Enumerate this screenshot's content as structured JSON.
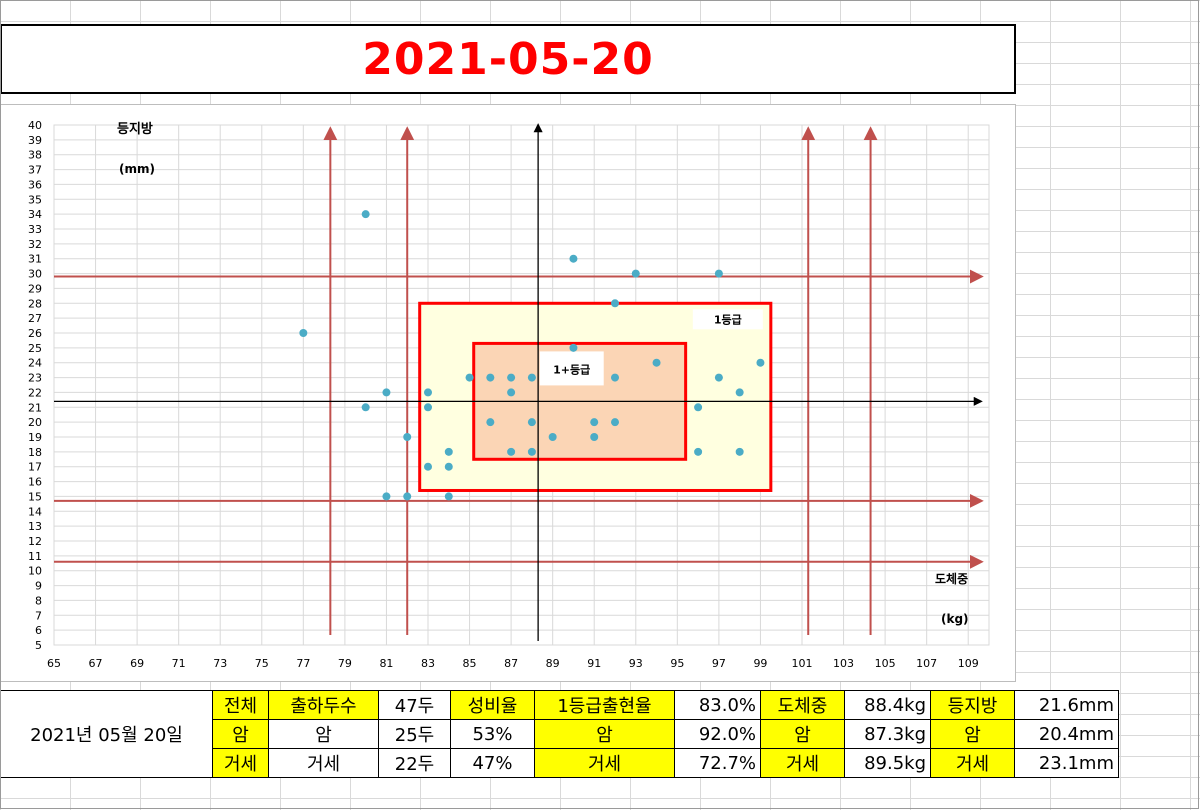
{
  "title": "2021-05-20",
  "chart_data": {
    "type": "scatter",
    "xlabel": "도체중",
    "xlabel_unit": "(kg)",
    "ylabel": "등지방",
    "ylabel_unit": "(mm)",
    "xlim": [
      65,
      110
    ],
    "ylim": [
      5,
      40
    ],
    "x_ticks": [
      65,
      67,
      69,
      71,
      73,
      75,
      77,
      79,
      81,
      83,
      85,
      87,
      89,
      91,
      93,
      95,
      97,
      99,
      101,
      103,
      105,
      107,
      109
    ],
    "y_ticks": [
      5,
      6,
      7,
      8,
      9,
      10,
      11,
      12,
      13,
      14,
      15,
      16,
      17,
      18,
      19,
      20,
      21,
      22,
      23,
      24,
      25,
      26,
      27,
      28,
      29,
      30,
      31,
      32,
      33,
      34,
      35,
      36,
      37,
      38,
      39,
      40
    ],
    "grid": true,
    "point_color": "#4bacc6",
    "points": [
      [
        77,
        26
      ],
      [
        80,
        34
      ],
      [
        80,
        21
      ],
      [
        81,
        22
      ],
      [
        81,
        15
      ],
      [
        82,
        19
      ],
      [
        82,
        15
      ],
      [
        83,
        22
      ],
      [
        83,
        21
      ],
      [
        83,
        17
      ],
      [
        84,
        18
      ],
      [
        84,
        17
      ],
      [
        84,
        15
      ],
      [
        85,
        23
      ],
      [
        86,
        23
      ],
      [
        86,
        20
      ],
      [
        87,
        23
      ],
      [
        87,
        22
      ],
      [
        87,
        18
      ],
      [
        88,
        23
      ],
      [
        88,
        20
      ],
      [
        88,
        18
      ],
      [
        89,
        19
      ],
      [
        90,
        31
      ],
      [
        90,
        25
      ],
      [
        91,
        20
      ],
      [
        91,
        19
      ],
      [
        92,
        28
      ],
      [
        92,
        23
      ],
      [
        92,
        20
      ],
      [
        93,
        30
      ],
      [
        94,
        24
      ],
      [
        96,
        21
      ],
      [
        96,
        18
      ],
      [
        97,
        30
      ],
      [
        97,
        23
      ],
      [
        98,
        22
      ],
      [
        98,
        18
      ],
      [
        99,
        24
      ]
    ],
    "reference_arrows": {
      "color": "#c0504d",
      "vertical_x": [
        78.3,
        82,
        101.3,
        104.3
      ],
      "horizontal_y": [
        29.8,
        14.7,
        10.6
      ]
    },
    "center_axes": {
      "x": 88.3,
      "y": 21.4,
      "color": "#000000"
    },
    "grade_boxes": [
      {
        "label": "1등급",
        "x": [
          82.6,
          99.5
        ],
        "y": [
          15.4,
          28
        ],
        "fill": "#ffffe0",
        "stroke": "#ff0000"
      },
      {
        "label": "1+등급",
        "x": [
          85.2,
          95.4
        ],
        "y": [
          17.5,
          25.3
        ],
        "fill": "#fbd5b5",
        "stroke": "#ff0000"
      }
    ]
  },
  "summary": {
    "date": "2021년  05월  20일",
    "headers": [
      "전체",
      "출하두수",
      "47두",
      "성비율",
      "1등급출현율",
      "83.0%",
      "도체중",
      "88.4kg",
      "등지방",
      "21.6mm"
    ],
    "row_female": [
      "암",
      "암",
      "25두",
      "53%",
      "암",
      "92.0%",
      "암",
      "87.3kg",
      "암",
      "20.4mm"
    ],
    "row_male": [
      "거세",
      "거세",
      "22두",
      "47%",
      "거세",
      "72.7%",
      "거세",
      "89.5kg",
      "거세",
      "23.1mm"
    ]
  }
}
